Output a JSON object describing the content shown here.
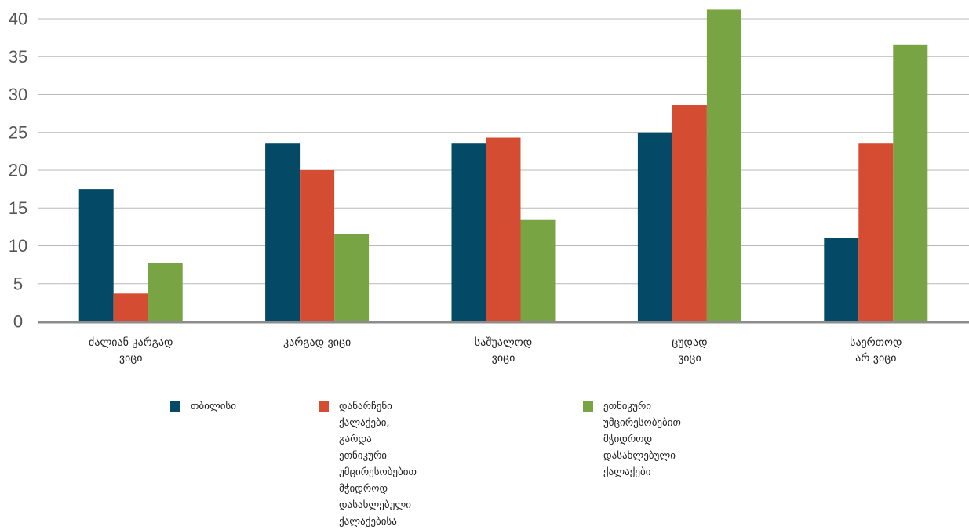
{
  "colors": {
    "series": [
      "#044a66",
      "#d44c32",
      "#79a443"
    ],
    "grid": "#b8b8b8",
    "axis": "#8c8c8c",
    "tick_text": "#555555"
  },
  "chart_data": {
    "type": "bar",
    "title": "",
    "xlabel": "",
    "ylabel": "",
    "ylim": [
      0,
      40
    ],
    "yticks": [
      0,
      5,
      10,
      15,
      20,
      25,
      30,
      35,
      40
    ],
    "grid": true,
    "legend_position": "bottom",
    "categories": [
      "ძალიან კარგად\nვიცი",
      "კარგად ვიცი",
      "საშუალოდ\nვიცი",
      "ცუდად\nვიცი",
      "საერთოდ\nარ ვიცი"
    ],
    "series": [
      {
        "name": "თბილისი",
        "values": [
          17.5,
          23.5,
          23.5,
          25,
          11
        ]
      },
      {
        "name": "დანარჩენი ქალაქები, გარდა\nეთნიკური უმცირესობებით მჭიდროდ\nდასახლებული ქალაქებისა",
        "values": [
          3.7,
          20,
          24.3,
          28.6,
          23.5
        ]
      },
      {
        "name": "ეთნიკური უმცირესობებით მჭიდროდ\nდასახლებული ქალაქები",
        "values": [
          7.7,
          11.6,
          13.5,
          41.2,
          36.6
        ]
      }
    ]
  }
}
